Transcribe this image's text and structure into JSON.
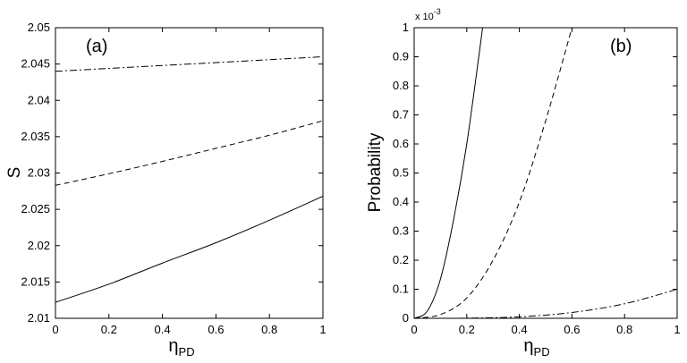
{
  "chart_data": [
    {
      "type": "line",
      "panel_label": "(a)",
      "xlabel": {
        "main": "η",
        "sub": "PD"
      },
      "ylabel": "S",
      "xlim": [
        0,
        1
      ],
      "ylim": [
        2.01,
        2.05
      ],
      "x_ticks": [
        "0",
        "0.2",
        "0.4",
        "0.6",
        "0.8",
        "1"
      ],
      "y_ticks": [
        "2.01",
        "2.015",
        "2.02",
        "2.025",
        "2.03",
        "2.035",
        "2.04",
        "2.045",
        "2.05"
      ],
      "series": [
        {
          "style": "solid",
          "x": [
            0,
            0.2,
            0.4,
            0.6,
            0.8,
            1.0
          ],
          "values": [
            2.0122,
            2.0147,
            2.0176,
            2.0204,
            2.0235,
            2.0268
          ]
        },
        {
          "style": "dashed",
          "x": [
            0,
            0.2,
            0.4,
            0.6,
            0.8,
            1.0
          ],
          "values": [
            2.0283,
            2.0299,
            2.0316,
            2.0334,
            2.0352,
            2.0372
          ]
        },
        {
          "style": "dashdot",
          "x": [
            0,
            0.2,
            0.4,
            0.6,
            0.8,
            1.0
          ],
          "values": [
            2.044,
            2.0444,
            2.0448,
            2.0452,
            2.0456,
            2.046
          ]
        }
      ]
    },
    {
      "type": "line",
      "panel_label": "(b)",
      "xlabel": {
        "main": "η",
        "sub": "PD"
      },
      "ylabel": "Probability",
      "axis_multiplier": {
        "base": "x 10",
        "exponent": "-3"
      },
      "xlim": [
        0,
        1
      ],
      "ylim": [
        0,
        1
      ],
      "x_ticks": [
        "0",
        "0.2",
        "0.4",
        "0.6",
        "0.8",
        "1"
      ],
      "y_ticks": [
        "0",
        "0.1",
        "0.2",
        "0.3",
        "0.4",
        "0.5",
        "0.6",
        "0.7",
        "0.8",
        "0.9",
        "1"
      ],
      "series": [
        {
          "style": "solid",
          "x": [
            0,
            0.05,
            0.1,
            0.15,
            0.2,
            0.25,
            0.26
          ],
          "values": [
            0,
            0.025,
            0.135,
            0.34,
            0.6,
            0.93,
            1.0
          ]
        },
        {
          "style": "dashed",
          "x": [
            0,
            0.1,
            0.2,
            0.3,
            0.4,
            0.5,
            0.6
          ],
          "values": [
            0,
            0.013,
            0.07,
            0.2,
            0.4,
            0.68,
            1.0
          ]
        },
        {
          "style": "dashdot",
          "x": [
            0,
            0.2,
            0.4,
            0.6,
            0.8,
            1.0
          ],
          "values": [
            0,
            0.0005,
            0.005,
            0.02,
            0.05,
            0.1
          ]
        }
      ]
    }
  ]
}
